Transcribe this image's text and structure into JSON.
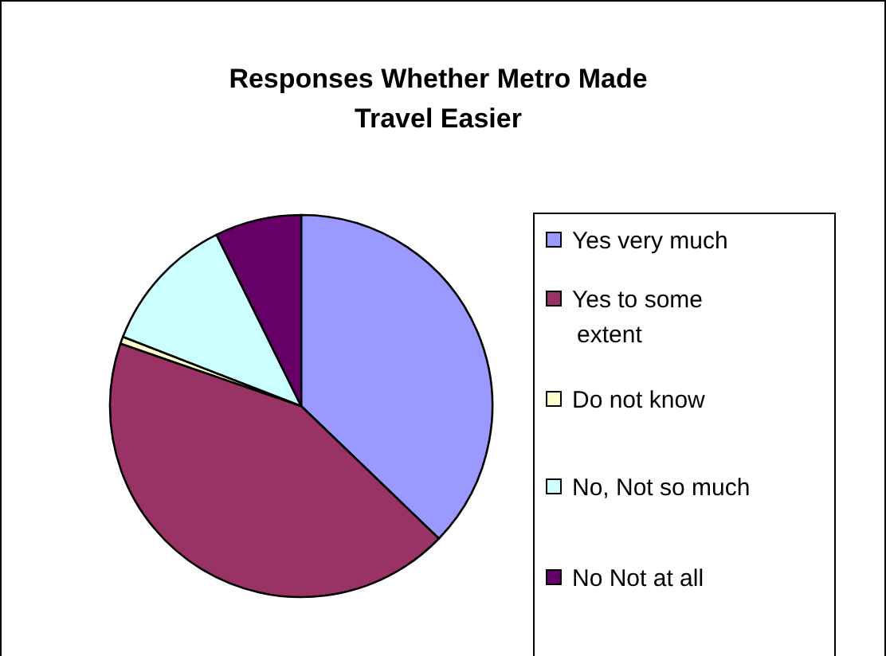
{
  "chart_data": {
    "type": "pie",
    "title": "Responses Whether Metro Made Travel Easier",
    "categories": [
      "Yes very much",
      "Yes to some extent",
      "Do not know",
      "No, Not so much",
      "No Not at all"
    ],
    "values": [
      37.2,
      43.1,
      0.6,
      11.8,
      7.3
    ],
    "colors": [
      "#9999ff",
      "#993366",
      "#ffffcc",
      "#ccffff",
      "#660066"
    ],
    "legend": "right"
  }
}
